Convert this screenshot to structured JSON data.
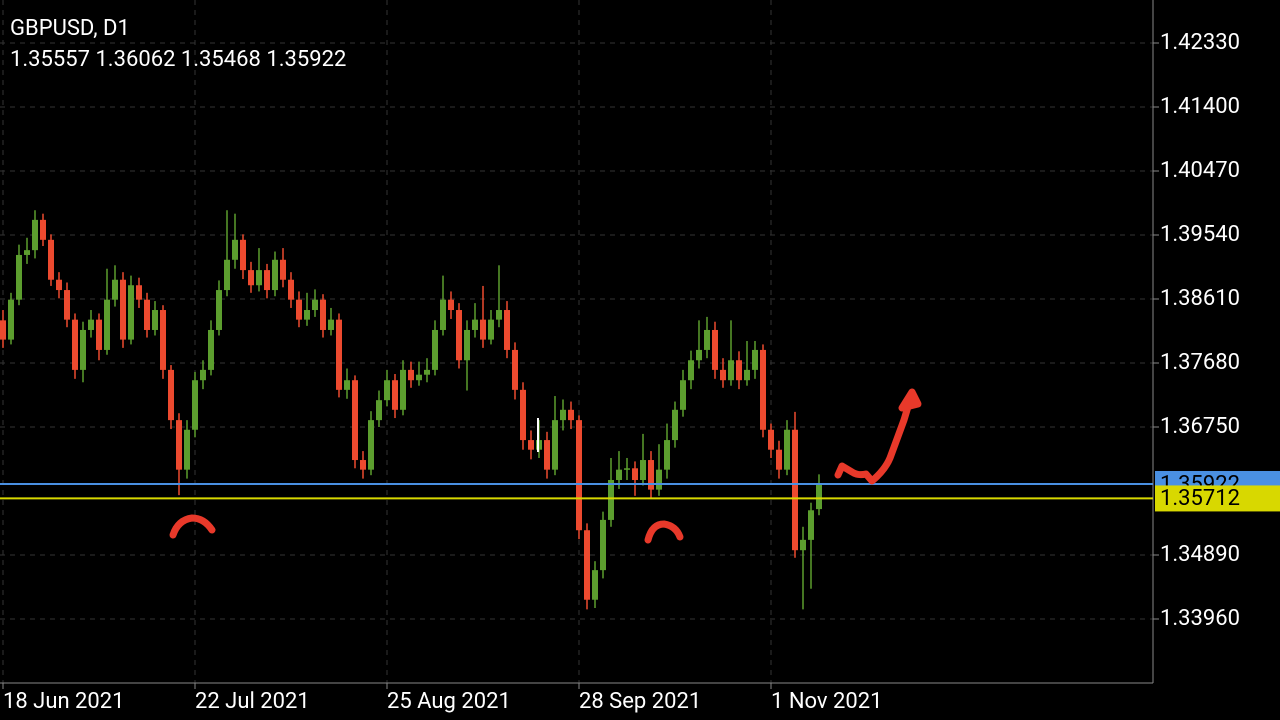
{
  "chart_data": {
    "type": "candlestick",
    "title": "GBPUSD, D1",
    "quote": "1.35557 1.36062 1.35468 1.35922",
    "categories": [
      "18 Jun 2021",
      null,
      null,
      null,
      null,
      null,
      null,
      null,
      null,
      null,
      null,
      null,
      null,
      null,
      null,
      null,
      null,
      null,
      null,
      null,
      null,
      null,
      null,
      null,
      "22 Jul 2021",
      null,
      null,
      null,
      null,
      null,
      null,
      null,
      null,
      null,
      null,
      null,
      null,
      null,
      null,
      null,
      null,
      null,
      null,
      null,
      null,
      null,
      null,
      null,
      "25 Aug 2021",
      null,
      null,
      null,
      null,
      null,
      null,
      null,
      null,
      null,
      null,
      null,
      null,
      null,
      null,
      null,
      null,
      null,
      null,
      null,
      null,
      null,
      null,
      null,
      "28 Sep 2021",
      null,
      null,
      null,
      null,
      null,
      null,
      null,
      null,
      null,
      null,
      null,
      null,
      null,
      null,
      null,
      null,
      null,
      null,
      null,
      null,
      null,
      null,
      null,
      "1 Nov 2021",
      null,
      null,
      null,
      null,
      null,
      null
    ],
    "open": [
      1.383,
      1.3802,
      1.386,
      1.3925,
      1.3932,
      1.3976,
      1.3947,
      1.3889,
      1.3874,
      1.3831,
      1.3758,
      1.3816,
      1.3831,
      1.3787,
      1.386,
      1.3889,
      1.3802,
      1.3881,
      1.386,
      1.3816,
      1.3845,
      1.3758,
      1.3685,
      1.3613,
      1.3671,
      1.3743,
      1.3758,
      1.3816,
      1.3874,
      1.3918,
      1.3947,
      1.3903,
      1.3881,
      1.3903,
      1.3874,
      1.3918,
      1.3889,
      1.386,
      1.3831,
      1.3845,
      1.386,
      1.3816,
      1.3831,
      1.3729,
      1.3743,
      1.3627,
      1.3613,
      1.3685,
      1.3714,
      1.3743,
      1.37,
      1.3758,
      1.3743,
      1.3751,
      1.3758,
      1.3816,
      1.386,
      1.3845,
      1.3772,
      1.3816,
      1.3831,
      1.3802,
      1.3831,
      1.3845,
      1.3787,
      1.3729,
      1.3656,
      1.3642,
      1.3656,
      1.3613,
      1.3685,
      1.37,
      1.3685,
      1.3525,
      1.3424,
      1.3467,
      1.354,
      1.3598,
      1.3613,
      1.3615,
      1.3598,
      1.3627,
      1.3584,
      1.3613,
      1.3656,
      1.37,
      1.3743,
      1.3772,
      1.3787,
      1.3816,
      1.3758,
      1.3743,
      1.3772,
      1.3743,
      1.3758,
      1.3787,
      1.3671,
      1.3642,
      1.3613,
      1.3671,
      1.3496,
      1.3511,
      1.35557
    ],
    "high": [
      1.3845,
      1.387,
      1.394,
      1.395,
      1.399,
      1.3985,
      1.3955,
      1.39,
      1.3885,
      1.384,
      1.3828,
      1.3845,
      1.384,
      1.3905,
      1.391,
      1.39,
      1.3895,
      1.3892,
      1.387,
      1.3858,
      1.3852,
      1.3765,
      1.3695,
      1.3685,
      1.3755,
      1.3772,
      1.383,
      1.3888,
      1.399,
      1.3985,
      1.3955,
      1.3915,
      1.3935,
      1.3912,
      1.393,
      1.3935,
      1.39,
      1.3872,
      1.387,
      1.3875,
      1.3868,
      1.3848,
      1.384,
      1.376,
      1.375,
      1.364,
      1.3698,
      1.3728,
      1.3758,
      1.3752,
      1.3772,
      1.377,
      1.377,
      1.3775,
      1.383,
      1.3895,
      1.3872,
      1.3855,
      1.383,
      1.3855,
      1.388,
      1.3845,
      1.391,
      1.3858,
      1.3798,
      1.374,
      1.367,
      1.3685,
      1.3668,
      1.372,
      1.3715,
      1.3712,
      1.3692,
      1.3535,
      1.348,
      1.3552,
      1.363,
      1.364,
      1.363,
      1.3625,
      1.3665,
      1.364,
      1.365,
      1.368,
      1.3712,
      1.3758,
      1.3786,
      1.383,
      1.3835,
      1.3828,
      1.3775,
      1.383,
      1.3785,
      1.38,
      1.38,
      1.3795,
      1.368,
      1.3655,
      1.3685,
      1.3697,
      1.353,
      1.3565,
      1.36062
    ],
    "low": [
      1.379,
      1.3795,
      1.3852,
      1.3912,
      1.392,
      1.3938,
      1.388,
      1.3862,
      1.382,
      1.3745,
      1.374,
      1.3805,
      1.3772,
      1.378,
      1.385,
      1.379,
      1.3795,
      1.3848,
      1.3805,
      1.3808,
      1.3745,
      1.3672,
      1.3576,
      1.36,
      1.366,
      1.373,
      1.375,
      1.3808,
      1.3865,
      1.3905,
      1.389,
      1.387,
      1.3872,
      1.3862,
      1.3865,
      1.3878,
      1.3848,
      1.382,
      1.3822,
      1.3835,
      1.3805,
      1.3808,
      1.3718,
      1.3716,
      1.3615,
      1.36,
      1.3605,
      1.3675,
      1.3705,
      1.3688,
      1.3692,
      1.3732,
      1.3735,
      1.374,
      1.375,
      1.3808,
      1.3832,
      1.376,
      1.3728,
      1.3805,
      1.379,
      1.3795,
      1.382,
      1.3775,
      1.3715,
      1.3642,
      1.3628,
      1.363,
      1.36,
      1.3605,
      1.367,
      1.3672,
      1.3512,
      1.341,
      1.3412,
      1.3455,
      1.353,
      1.3585,
      1.3598,
      1.3575,
      1.359,
      1.3572,
      1.3575,
      1.36,
      1.3645,
      1.369,
      1.373,
      1.376,
      1.3775,
      1.3745,
      1.3732,
      1.3735,
      1.373,
      1.3735,
      1.3745,
      1.366,
      1.363,
      1.36,
      1.3605,
      1.3485,
      1.341,
      1.344,
      1.35468
    ],
    "close": [
      1.3802,
      1.386,
      1.3925,
      1.3932,
      1.3976,
      1.3947,
      1.3889,
      1.3874,
      1.3831,
      1.3758,
      1.3816,
      1.3831,
      1.3787,
      1.386,
      1.3889,
      1.3802,
      1.3881,
      1.386,
      1.3816,
      1.3845,
      1.3758,
      1.3685,
      1.3613,
      1.3671,
      1.3743,
      1.3758,
      1.3816,
      1.3874,
      1.3918,
      1.3947,
      1.3903,
      1.3881,
      1.3903,
      1.3874,
      1.3918,
      1.3889,
      1.386,
      1.3831,
      1.3845,
      1.386,
      1.3816,
      1.3831,
      1.3729,
      1.3743,
      1.3627,
      1.3613,
      1.3685,
      1.3714,
      1.3743,
      1.37,
      1.3758,
      1.3743,
      1.3751,
      1.3758,
      1.3816,
      1.386,
      1.3845,
      1.3772,
      1.3816,
      1.3831,
      1.3802,
      1.3831,
      1.3845,
      1.3787,
      1.3729,
      1.3656,
      1.3642,
      1.3656,
      1.3613,
      1.3685,
      1.37,
      1.3685,
      1.3525,
      1.3424,
      1.3467,
      1.354,
      1.3598,
      1.3613,
      1.3615,
      1.3598,
      1.3627,
      1.3584,
      1.3613,
      1.3656,
      1.37,
      1.3743,
      1.3772,
      1.3787,
      1.3816,
      1.3758,
      1.3743,
      1.3772,
      1.3743,
      1.3758,
      1.3787,
      1.3671,
      1.3642,
      1.3613,
      1.3671,
      1.3496,
      1.3511,
      1.3554,
      1.35922
    ],
    "up_color": "#5c9e2e",
    "down_color": "#ec4a2f",
    "ylim": [
      1.3303,
      1.42955
    ],
    "yticks": [
      {
        "value": 1.4233,
        "label": "1.42330"
      },
      {
        "value": 1.414,
        "label": "1.41400"
      },
      {
        "value": 1.4047,
        "label": "1.40470"
      },
      {
        "value": 1.3954,
        "label": "1.39540"
      },
      {
        "value": 1.3861,
        "label": "1.38610"
      },
      {
        "value": 1.3768,
        "label": "1.37680"
      },
      {
        "value": 1.3675,
        "label": "1.36750"
      },
      {
        "value": 1.3489,
        "label": "1.34890"
      },
      {
        "value": 1.3396,
        "label": "1.33960"
      }
    ],
    "price_lines": [
      {
        "value": 1.35922,
        "label": "1.35922",
        "color": "#4a90e2"
      },
      {
        "value": 1.35712,
        "label": "1.35712",
        "color": "#d8d800"
      }
    ],
    "grid": true
  }
}
